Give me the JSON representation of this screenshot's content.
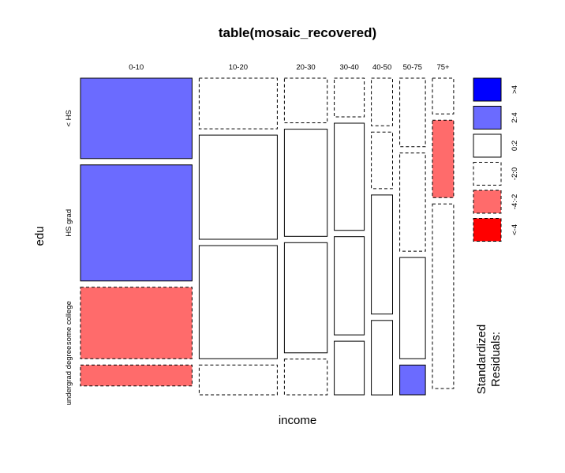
{
  "chart_data": {
    "type": "mosaic",
    "title": "table(mosaic_recovered)",
    "xlabel": "income",
    "ylabel": "edu",
    "income_levels": [
      "0-10",
      "10-20",
      "20-30",
      "30-40",
      "40-50",
      "50-75",
      "75+"
    ],
    "edu_levels": [
      "< HS",
      "HS grad",
      "some college",
      "undergrad degree"
    ],
    "income_proportions": [
      0.357,
      0.25,
      0.137,
      0.096,
      0.068,
      0.082,
      0.068
    ],
    "conditional_proportions": [
      [
        0.27,
        0.39,
        0.24,
        0.07
      ],
      [
        0.17,
        0.35,
        0.38,
        0.1
      ],
      [
        0.15,
        0.36,
        0.37,
        0.12
      ],
      [
        0.13,
        0.36,
        0.33,
        0.18
      ],
      [
        0.16,
        0.19,
        0.4,
        0.25
      ],
      [
        0.23,
        0.33,
        0.34,
        0.1
      ],
      [
        0.12,
        0.26,
        0.62,
        0.0
      ]
    ],
    "residual_class": [
      [
        "+2:4",
        "+2:4",
        "-4:-2",
        "-4:-2"
      ],
      [
        "-2:0",
        "0:2",
        "0:2",
        "-2:0"
      ],
      [
        "-2:0",
        "0:2",
        "0:2",
        "-2:0"
      ],
      [
        "-2:0",
        "0:2",
        "0:2",
        "0:2"
      ],
      [
        "-2:0",
        "-2:0",
        "0:2",
        "0:2"
      ],
      [
        "-2:0",
        "-2:0",
        "0:2",
        "+2:4"
      ],
      [
        "-2:0",
        "-4:-2",
        "-2:0",
        ">4"
      ]
    ],
    "legend": {
      "title": [
        "Standardized",
        "Residuals:"
      ],
      "entries": [
        {
          "label": ">4",
          "fill": "#0000FF",
          "dashed": false
        },
        {
          "label": "2:4",
          "fill": "#6B6BFF",
          "dashed": false
        },
        {
          "label": "0:2",
          "fill": "#FFFFFF",
          "dashed": false
        },
        {
          "label": "-2:0",
          "fill": "#FFFFFF",
          "dashed": true
        },
        {
          "label": "-4:-2",
          "fill": "#FF6B6B",
          "dashed": true
        },
        {
          "label": "<-4",
          "fill": "#FF0000",
          "dashed": true
        }
      ]
    },
    "colors": {
      "strong_positive": "#0000FF",
      "positive": "#6B6BFF",
      "negative": "#FF6B6B",
      "strong_negative": "#FF0000",
      "neutral": "#FFFFFF",
      "border": "#000000"
    }
  }
}
